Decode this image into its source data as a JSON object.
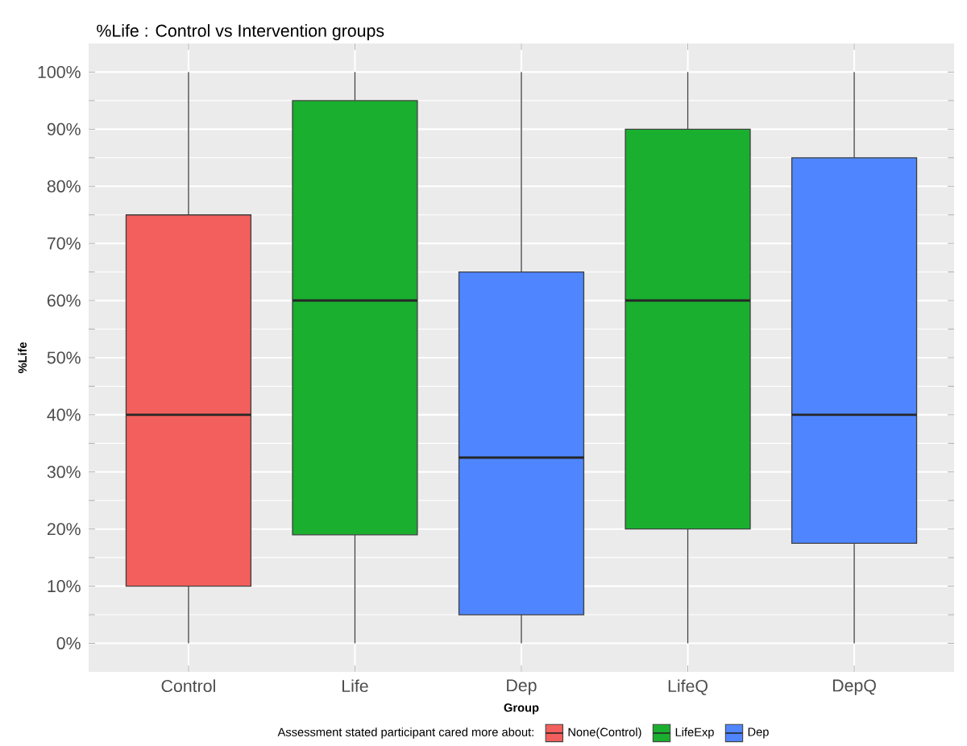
{
  "chart_data": {
    "type": "box",
    "title": "%Life : Control vs Intervention groups",
    "xlabel": "Group",
    "ylabel": "%Life",
    "legend_title": "Assessment stated participant cared more about:",
    "categories": [
      "Control",
      "Life",
      "Dep",
      "LifeQ",
      "DepQ"
    ],
    "series": [
      {
        "name": "None(Control)",
        "color": "#f25f5c",
        "boxes": [
          {
            "low": 0,
            "q1": 10,
            "median": 40,
            "q3": 75,
            "high": 100
          },
          null,
          null,
          null,
          null
        ]
      },
      {
        "name": "LifeExp",
        "color": "#1aaf2f",
        "boxes": [
          null,
          {
            "low": 0,
            "q1": 19,
            "median": 60,
            "q3": 95,
            "high": 100
          },
          null,
          {
            "low": 0,
            "q1": 20,
            "median": 60,
            "q3": 90,
            "high": 100
          },
          null
        ]
      },
      {
        "name": "Dep",
        "color": "#4f86ff",
        "boxes": [
          null,
          null,
          {
            "low": 0,
            "q1": 5,
            "median": 32.5,
            "q3": 65,
            "high": 100
          },
          null,
          {
            "low": 0,
            "q1": 17.5,
            "median": 40,
            "q3": 85,
            "high": 100
          }
        ]
      }
    ],
    "ylim": [
      -5,
      105
    ],
    "yticks": [
      {
        "value": 0,
        "label": "0%"
      },
      {
        "value": 10,
        "label": "10%"
      },
      {
        "value": 20,
        "label": "20%"
      },
      {
        "value": 30,
        "label": "30%"
      },
      {
        "value": 40,
        "label": "40%"
      },
      {
        "value": 50,
        "label": "50%"
      },
      {
        "value": 60,
        "label": "60%"
      },
      {
        "value": 70,
        "label": "70%"
      },
      {
        "value": 80,
        "label": "80%"
      },
      {
        "value": 90,
        "label": "90%"
      },
      {
        "value": 100,
        "label": "100%"
      }
    ],
    "grid": true,
    "legend": "bottom"
  }
}
